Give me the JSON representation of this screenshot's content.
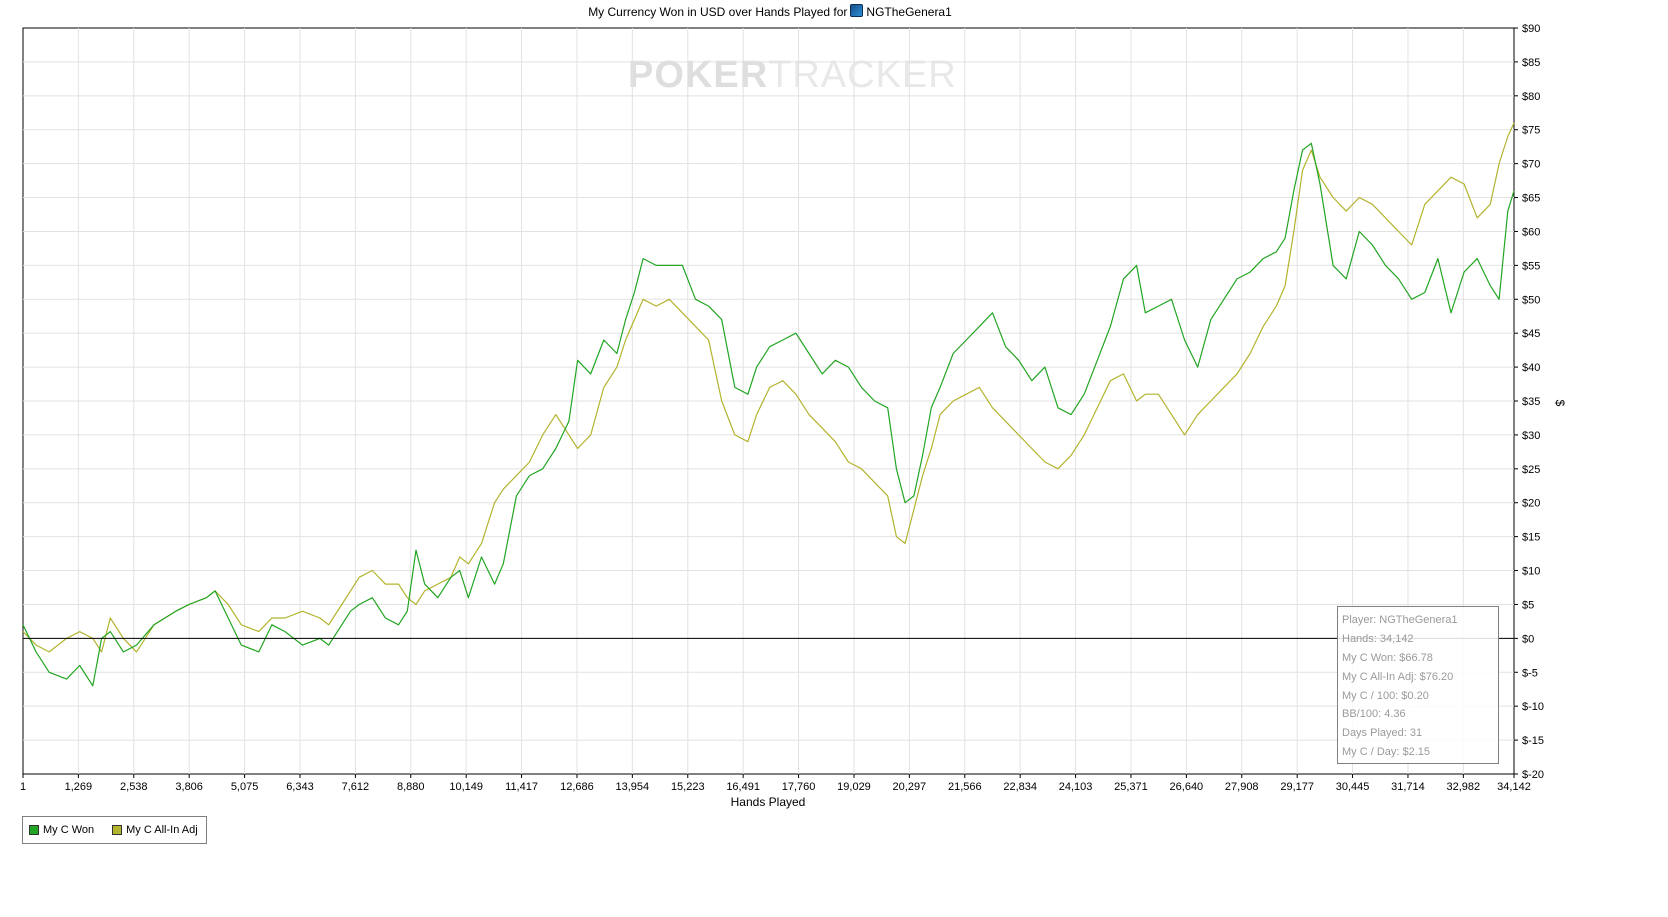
{
  "chart_data": {
    "type": "line",
    "title": "My Currency Won in USD over Hands Played for",
    "player": "NGTheGenera1",
    "xlabel": "Hands Played",
    "ylabel": "$",
    "xlim": [
      1,
      34142
    ],
    "ylim": [
      -20,
      90
    ],
    "x_ticks": [
      "1",
      "1,269",
      "2,538",
      "3,806",
      "5,075",
      "6,343",
      "7,612",
      "8,880",
      "10,149",
      "11,417",
      "12,686",
      "13,954",
      "15,223",
      "16,491",
      "17,760",
      "19,029",
      "20,297",
      "21,566",
      "22,834",
      "24,103",
      "25,371",
      "26,640",
      "27,908",
      "29,177",
      "30,445",
      "31,714",
      "32,982",
      "34,142"
    ],
    "y_ticks": [
      "$90",
      "$85",
      "$80",
      "$75",
      "$70",
      "$65",
      "$60",
      "$55",
      "$50",
      "$45",
      "$40",
      "$35",
      "$30",
      "$25",
      "$20",
      "$15",
      "$10",
      "$5",
      "$0",
      "$-5",
      "$-10",
      "$-15",
      "$-20"
    ],
    "grid": true,
    "legend_position": "bottom-left",
    "colors": {
      "won": "#22a522",
      "allin": "#b3b32e",
      "grid": "#e2e2e2",
      "zero_line": "#000000"
    },
    "series": [
      {
        "name": "My C Won",
        "x": [
          1,
          300,
          600,
          1000,
          1300,
          1600,
          1800,
          2000,
          2300,
          2600,
          3000,
          3500,
          3800,
          4200,
          4400,
          4700,
          5000,
          5400,
          5700,
          6000,
          6400,
          6800,
          7000,
          7300,
          7500,
          7700,
          8000,
          8300,
          8600,
          8800,
          9000,
          9200,
          9500,
          9800,
          10000,
          10200,
          10500,
          10800,
          11000,
          11300,
          11600,
          11900,
          12200,
          12500,
          12700,
          13000,
          13300,
          13600,
          13800,
          14000,
          14200,
          14500,
          14800,
          15100,
          15400,
          15700,
          16000,
          16300,
          16600,
          16800,
          17100,
          17400,
          17700,
          18000,
          18300,
          18600,
          18900,
          19200,
          19500,
          19800,
          20000,
          20200,
          20400,
          20600,
          20800,
          21000,
          21300,
          21600,
          21900,
          22200,
          22500,
          22800,
          23100,
          23400,
          23700,
          24000,
          24300,
          24600,
          24900,
          25200,
          25500,
          25700,
          26000,
          26300,
          26600,
          26900,
          27200,
          27500,
          27800,
          28100,
          28400,
          28700,
          28900,
          29100,
          29300,
          29500,
          29700,
          30000,
          30300,
          30600,
          30900,
          31200,
          31500,
          31800,
          32100,
          32400,
          32700,
          33000,
          33300,
          33600,
          33800,
          34000,
          34142
        ],
        "y": [
          2,
          -2,
          -5,
          -6,
          -4,
          -7,
          0,
          1,
          -2,
          -1,
          2,
          4,
          5,
          6,
          7,
          3,
          -1,
          -2,
          2,
          1,
          -1,
          0,
          -1,
          2,
          4,
          5,
          6,
          3,
          2,
          4,
          13,
          8,
          6,
          9,
          10,
          6,
          12,
          8,
          11,
          21,
          24,
          25,
          28,
          32,
          41,
          39,
          44,
          42,
          47,
          51,
          56,
          55,
          55,
          55,
          50,
          49,
          47,
          37,
          36,
          40,
          43,
          44,
          45,
          42,
          39,
          41,
          40,
          37,
          35,
          34,
          25,
          20,
          21,
          27,
          34,
          37,
          42,
          44,
          46,
          48,
          43,
          41,
          38,
          40,
          34,
          33,
          36,
          41,
          46,
          53,
          55,
          48,
          49,
          50,
          44,
          40,
          47,
          50,
          53,
          54,
          56,
          57,
          59,
          66,
          72,
          73,
          67,
          55,
          53,
          60,
          58,
          55,
          53,
          50,
          51,
          56,
          48,
          54,
          56,
          52,
          50,
          63,
          66
        ]
      },
      {
        "name": "My C All-In Adj",
        "x": [
          1,
          300,
          600,
          1000,
          1300,
          1600,
          1800,
          2000,
          2300,
          2600,
          3000,
          3500,
          3800,
          4200,
          4400,
          4700,
          5000,
          5400,
          5700,
          6000,
          6400,
          6800,
          7000,
          7300,
          7500,
          7700,
          8000,
          8300,
          8600,
          8800,
          9000,
          9200,
          9500,
          9800,
          10000,
          10200,
          10500,
          10800,
          11000,
          11300,
          11600,
          11900,
          12200,
          12500,
          12700,
          13000,
          13300,
          13600,
          13800,
          14000,
          14200,
          14500,
          14800,
          15100,
          15400,
          15700,
          16000,
          16300,
          16600,
          16800,
          17100,
          17400,
          17700,
          18000,
          18300,
          18600,
          18900,
          19200,
          19500,
          19800,
          20000,
          20200,
          20400,
          20600,
          20800,
          21000,
          21300,
          21600,
          21900,
          22200,
          22500,
          22800,
          23100,
          23400,
          23700,
          24000,
          24300,
          24600,
          24900,
          25200,
          25500,
          25700,
          26000,
          26300,
          26600,
          26900,
          27200,
          27500,
          27800,
          28100,
          28400,
          28700,
          28900,
          29100,
          29300,
          29500,
          29700,
          30000,
          30300,
          30600,
          30900,
          31200,
          31500,
          31800,
          32100,
          32400,
          32700,
          33000,
          33300,
          33600,
          33800,
          34000,
          34142
        ],
        "y": [
          1,
          -1,
          -2,
          0,
          1,
          0,
          -2,
          3,
          0,
          -2,
          2,
          4,
          5,
          6,
          7,
          5,
          2,
          1,
          3,
          3,
          4,
          3,
          2,
          5,
          7,
          9,
          10,
          8,
          8,
          6,
          5,
          7,
          8,
          9,
          12,
          11,
          14,
          20,
          22,
          24,
          26,
          30,
          33,
          30,
          28,
          30,
          37,
          40,
          44,
          47,
          50,
          49,
          50,
          48,
          46,
          44,
          35,
          30,
          29,
          33,
          37,
          38,
          36,
          33,
          31,
          29,
          26,
          25,
          23,
          21,
          15,
          14,
          19,
          24,
          28,
          33,
          35,
          36,
          37,
          34,
          32,
          30,
          28,
          26,
          25,
          27,
          30,
          34,
          38,
          39,
          35,
          36,
          36,
          33,
          30,
          33,
          35,
          37,
          39,
          42,
          46,
          49,
          52,
          60,
          69,
          72,
          68,
          65,
          63,
          65,
          64,
          62,
          60,
          58,
          64,
          66,
          68,
          67,
          62,
          64,
          70,
          74,
          76
        ]
      }
    ]
  },
  "legend": {
    "items": [
      "My C Won",
      "My C All-In Adj"
    ]
  },
  "watermark": {
    "bold": "POKER",
    "light": "TRACKER"
  },
  "stats": {
    "player": "Player: NGTheGenera1",
    "hands": "Hands: 34,142",
    "won": "My C Won: $66.78",
    "allin": "My C All-In Adj: $76.20",
    "per100": "My C / 100: $0.20",
    "bb100": "BB/100: 4.36",
    "days": "Days Played: 31",
    "per_day": "My C / Day: $2.15"
  }
}
